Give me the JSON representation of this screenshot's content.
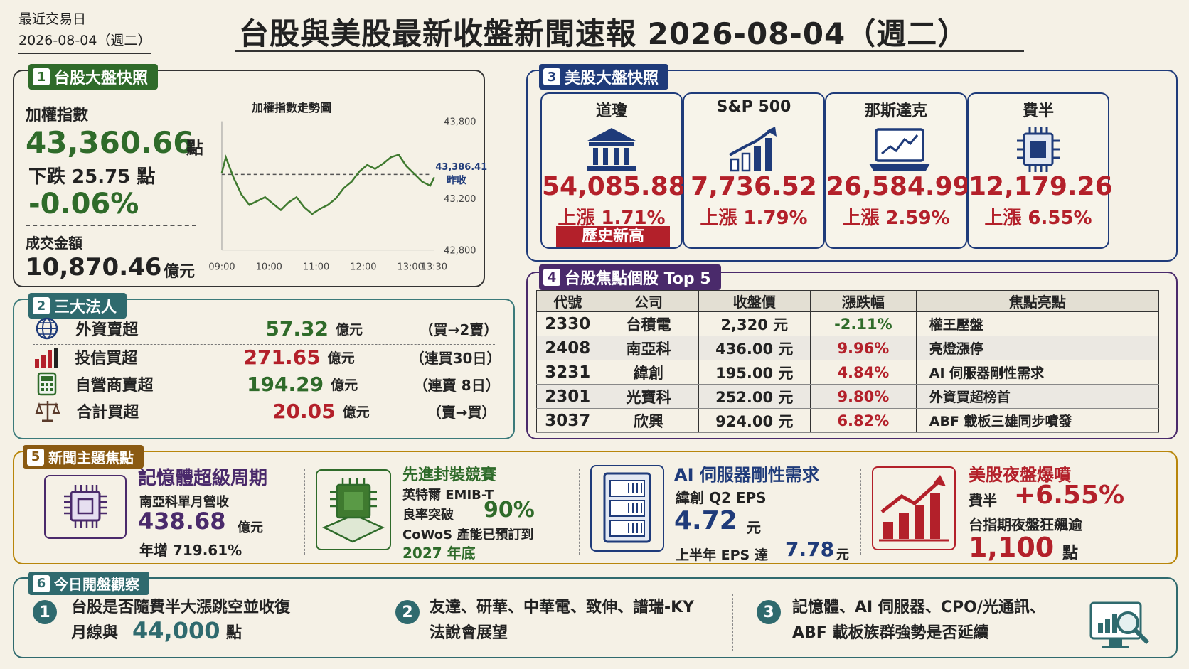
{
  "header": {
    "date_label": "最近交易日",
    "date_value": "2026-08-04（週二）",
    "title": "台股與美股最新收盤新聞速報 2026-08-04（週二）"
  },
  "tw_market": {
    "section_num": "1",
    "section_title": "台股大盤快照",
    "index_label": "加權指數",
    "index_value": "43,360.66",
    "index_unit": "點",
    "change_text": "下跌 25.75 點",
    "change_pct": "-0.06%",
    "volume_label": "成交金額",
    "volume_value": "10,870.46",
    "volume_unit": "億元",
    "chart_title": "加權指數走勢圖",
    "prev_close_label": "昨收",
    "prev_close_value": "43,386.41"
  },
  "chart_data": {
    "type": "line",
    "title": "加權指數走勢圖",
    "x_ticks": [
      "09:00",
      "10:00",
      "11:00",
      "12:00",
      "13:00",
      "13:30"
    ],
    "y_ticks": [
      "43,800",
      "43,200",
      "42,800"
    ],
    "ylim": [
      42800,
      43800
    ],
    "reference_line": {
      "label": "昨收",
      "value": 43386.41
    },
    "x": [
      "09:00",
      "09:05",
      "09:15",
      "09:25",
      "09:35",
      "09:45",
      "09:55",
      "10:05",
      "10:15",
      "10:25",
      "10:35",
      "10:45",
      "10:55",
      "11:05",
      "11:15",
      "11:25",
      "11:35",
      "11:45",
      "11:55",
      "12:05",
      "12:15",
      "12:25",
      "12:35",
      "12:45",
      "12:55",
      "13:05",
      "13:15",
      "13:25",
      "13:30"
    ],
    "values": [
      43400,
      43520,
      43360,
      43230,
      43150,
      43180,
      43210,
      43160,
      43110,
      43170,
      43210,
      43130,
      43080,
      43120,
      43150,
      43200,
      43280,
      43330,
      43410,
      43460,
      43430,
      43470,
      43520,
      43540,
      43450,
      43390,
      43330,
      43300,
      43360
    ],
    "color": "#3f7a2f"
  },
  "institutional": {
    "section_num": "2",
    "section_title": "三大法人",
    "rows": [
      {
        "icon": "globe-icon",
        "label": "外資賣超",
        "value": "57.32",
        "unit": "億元",
        "note": "（買→2賣）",
        "color": "#2f6b2a"
      },
      {
        "icon": "bar-chart-icon",
        "label": "投信買超",
        "value": "271.65",
        "unit": "億元",
        "note": "（連買30日）",
        "color": "#b3202a"
      },
      {
        "icon": "calculator-icon",
        "label": "自營商賣超",
        "value": "194.29",
        "unit": "億元",
        "note": "（連賣 8日）",
        "color": "#2f6b2a"
      },
      {
        "icon": "scale-icon",
        "label": "合計買超",
        "value": "20.05",
        "unit": "億元",
        "note": "（賣→買）",
        "color": "#b3202a"
      }
    ]
  },
  "us_market": {
    "section_num": "3",
    "section_title": "美股大盤快照",
    "indices": [
      {
        "name": "道瓊",
        "icon": "building-icon",
        "value": "54,085.88",
        "change": "上漲 1.71%",
        "badge": "歷史新高"
      },
      {
        "name": "S&P 500",
        "icon": "growth-chart-icon",
        "value": "7,736.52",
        "change": "上漲 1.79%",
        "badge": ""
      },
      {
        "name": "那斯達克",
        "icon": "laptop-chart-icon",
        "value": "26,584.99",
        "change": "上漲 2.59%",
        "badge": ""
      },
      {
        "name": "費半",
        "icon": "chip-icon",
        "value": "12,179.26",
        "change": "上漲 6.55%",
        "badge": ""
      }
    ]
  },
  "top_stocks": {
    "section_num": "4",
    "section_title": "台股焦點個股 Top 5",
    "headers": [
      "代號",
      "公司",
      "收盤價",
      "漲跌幅",
      "焦點亮點"
    ],
    "rows": [
      {
        "code": "2330",
        "company": "台積電",
        "price": "2,320 元",
        "change": "-2.11%",
        "focus": "權王壓盤",
        "color": "#2f6b2a"
      },
      {
        "code": "2408",
        "company": "南亞科",
        "price": "436.00 元",
        "change": "9.96%",
        "focus": "亮燈漲停",
        "color": "#b3202a"
      },
      {
        "code": "3231",
        "company": "緯創",
        "price": "195.00 元",
        "change": "4.84%",
        "focus": "AI 伺服器剛性需求",
        "color": "#b3202a"
      },
      {
        "code": "2301",
        "company": "光寶科",
        "price": "252.00 元",
        "change": "9.80%",
        "focus": "外資買超榜首",
        "color": "#b3202a"
      },
      {
        "code": "3037",
        "company": "欣興",
        "price": "924.00 元",
        "change": "6.82%",
        "focus": "ABF 載板三雄同步噴發",
        "color": "#b3202a"
      }
    ]
  },
  "news": {
    "section_num": "5",
    "section_title": "新聞主題焦點",
    "memory": {
      "title": "記憶體超級周期",
      "line1": "南亞科單月營收",
      "value": "438.68",
      "unit": "億元",
      "line3": "年增 719.61%"
    },
    "packaging": {
      "title": "先進封裝競賽",
      "line1": "英特爾 EMIB-T",
      "line2_pre": "良率突破",
      "line2_val": "90%",
      "line3": "CoWoS 產能已預訂到",
      "line4": "2027 年底"
    },
    "ai_server": {
      "title": "AI 伺服器剛性需求",
      "line1": "緯創 Q2 EPS",
      "value": "4.72",
      "unit": "元",
      "line3_pre": "上半年 EPS 達",
      "line3_val": "7.78",
      "line3_unit": "元"
    },
    "us_night": {
      "title": "美股夜盤爆噴",
      "line1_pre": "費半",
      "line1_val": "+6.55%",
      "line2": "台指期夜盤狂飆逾",
      "value": "1,100",
      "unit": "點"
    }
  },
  "today_watch": {
    "section_num": "6",
    "section_title": "今日開盤觀察",
    "items": [
      {
        "num": "1",
        "line1": "台股是否隨費半大漲跳空並收復",
        "line2_pre": "月線與",
        "line2_val": "44,000",
        "line2_post": "點"
      },
      {
        "num": "2",
        "line1": "友達、研華、中華電、致伸、譜瑞-KY",
        "line2_pre": "法說會展望",
        "line2_val": "",
        "line2_post": ""
      },
      {
        "num": "3",
        "line1": "記憶體、AI 伺服器、CPO/光通訊、",
        "line2_pre": "ABF 載板族群強勢是否延續",
        "line2_val": "",
        "line2_post": ""
      }
    ]
  }
}
